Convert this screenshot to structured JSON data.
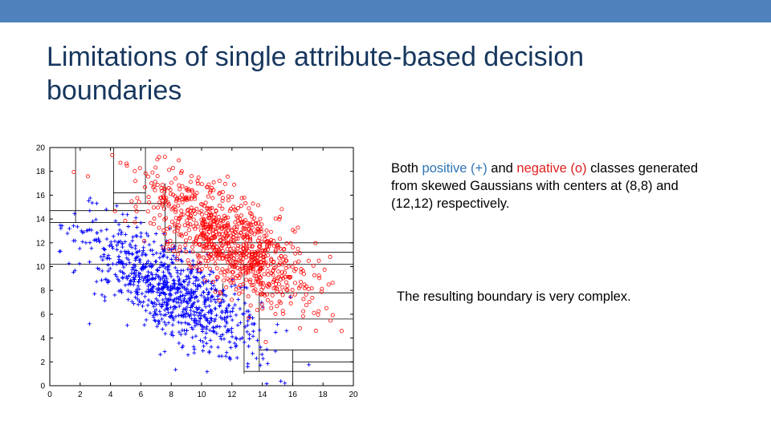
{
  "slide": {
    "title": "Limitations of single attribute-based decision boundaries",
    "description": {
      "prefix": "Both ",
      "positive": "positive (+)",
      "mid": " and ",
      "negative": "negative (o)",
      "suffix": " classes generated from skewed Gaussians with centers at (8,8) and (12,12) respectively."
    },
    "result": "The resulting boundary is very complex."
  },
  "colors": {
    "accent_bar": "#4f81bd",
    "title": "#17375e",
    "positive": "#0000ff",
    "negative": "#ff0000",
    "positive_text": "#2e74b5",
    "negative_text": "#e02020"
  },
  "chart_data": {
    "type": "scatter",
    "xlim": [
      0,
      20
    ],
    "ylim": [
      0,
      20
    ],
    "xticks": [
      "0",
      "2",
      "4",
      "6",
      "8",
      "10",
      "12",
      "14",
      "16",
      "18",
      "20"
    ],
    "yticks": [
      "0",
      "2",
      "4",
      "6",
      "8",
      "10",
      "12",
      "14",
      "16",
      "18",
      "20"
    ],
    "grid": false,
    "series": [
      {
        "marker": "+",
        "color": "#0000ff",
        "center": [
          8,
          8
        ],
        "n_points": 900
      },
      {
        "marker": "o",
        "color": "#ff0000",
        "center": [
          12,
          12
        ],
        "n_points": 900
      }
    ],
    "boundaries": [
      {
        "orient": "v",
        "x": 1.7,
        "y": [
          13.7,
          20
        ]
      },
      {
        "orient": "v",
        "x": 4.2,
        "y": [
          14.7,
          20
        ]
      },
      {
        "orient": "v",
        "x": 6.3,
        "y": [
          15.3,
          20
        ]
      },
      {
        "orient": "v",
        "x": 7.6,
        "y": [
          11.2,
          17
        ]
      },
      {
        "orient": "v",
        "x": 8.3,
        "y": [
          11.2,
          13.5
        ]
      },
      {
        "orient": "h",
        "y": 14.7,
        "x": [
          0,
          6.3
        ]
      },
      {
        "orient": "h",
        "y": 13.7,
        "x": [
          0,
          6.3
        ]
      },
      {
        "orient": "h",
        "y": 16.2,
        "x": [
          4.2,
          6.3
        ]
      },
      {
        "orient": "h",
        "y": 15.3,
        "x": [
          4.2,
          7.6
        ]
      },
      {
        "orient": "h",
        "y": 11.2,
        "x": [
          7.6,
          20
        ]
      },
      {
        "orient": "h",
        "y": 12.0,
        "x": [
          7.6,
          20
        ]
      },
      {
        "orient": "h",
        "y": 10.2,
        "x": [
          0,
          20
        ]
      },
      {
        "orient": "v",
        "x": 12.8,
        "y": [
          1,
          10.2
        ]
      },
      {
        "orient": "v",
        "x": 13.8,
        "y": [
          1.2,
          7.8
        ]
      },
      {
        "orient": "v",
        "x": 11.4,
        "y": [
          7.5,
          8.6
        ]
      },
      {
        "orient": "v",
        "x": 16.0,
        "y": [
          0,
          3
        ]
      },
      {
        "orient": "h",
        "y": 7.8,
        "x": [
          13.8,
          20
        ]
      },
      {
        "orient": "h",
        "y": 5.6,
        "x": [
          13.8,
          20
        ]
      },
      {
        "orient": "h",
        "y": 3.0,
        "x": [
          13.8,
          20
        ]
      },
      {
        "orient": "h",
        "y": 2.0,
        "x": [
          16.0,
          20
        ]
      },
      {
        "orient": "h",
        "y": 1.2,
        "x": [
          12.8,
          20
        ]
      }
    ]
  }
}
